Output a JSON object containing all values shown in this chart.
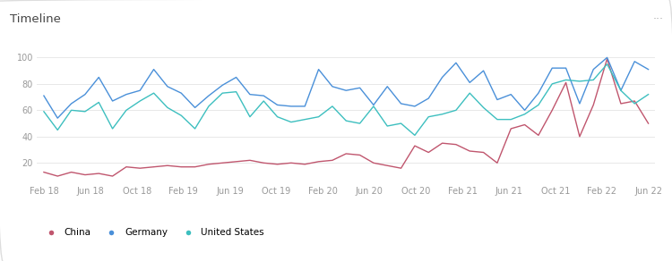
{
  "title": "Timeline",
  "dots_label": "···",
  "background_color": "#ffffff",
  "border_color": "#dddddd",
  "x_labels": [
    "Feb 18",
    "Jun 18",
    "Oct 18",
    "Feb 19",
    "Jun 19",
    "Oct 19",
    "Feb 20",
    "Jun 20",
    "Oct 20",
    "Feb 21",
    "Jun 21",
    "Oct 21",
    "Feb 22",
    "Jun 22"
  ],
  "ylim": [
    5,
    108
  ],
  "yticks": [
    20,
    40,
    60,
    80,
    100
  ],
  "china_color": "#c0566e",
  "germany_color": "#4a90d9",
  "us_color": "#3dbfbf",
  "china": [
    13,
    10,
    13,
    11,
    12,
    10,
    17,
    16,
    17,
    18,
    17,
    17,
    19,
    20,
    21,
    22,
    20,
    19,
    20,
    19,
    21,
    22,
    27,
    26,
    20,
    18,
    16,
    33,
    28,
    35,
    34,
    29,
    28,
    20,
    46,
    49,
    41,
    60,
    81,
    40,
    64,
    99,
    65,
    67,
    50
  ],
  "germany": [
    71,
    54,
    65,
    72,
    85,
    67,
    72,
    75,
    91,
    78,
    73,
    62,
    71,
    79,
    85,
    72,
    71,
    64,
    63,
    63,
    91,
    78,
    75,
    77,
    64,
    78,
    65,
    63,
    69,
    85,
    96,
    81,
    90,
    68,
    72,
    60,
    73,
    92,
    92,
    65,
    91,
    100,
    75,
    97,
    91
  ],
  "us": [
    59,
    45,
    60,
    59,
    66,
    46,
    60,
    67,
    73,
    62,
    56,
    46,
    63,
    73,
    74,
    55,
    67,
    55,
    51,
    53,
    55,
    63,
    52,
    50,
    63,
    48,
    50,
    41,
    55,
    57,
    60,
    73,
    62,
    53,
    53,
    57,
    64,
    80,
    83,
    82,
    83,
    95,
    75,
    65,
    72
  ]
}
